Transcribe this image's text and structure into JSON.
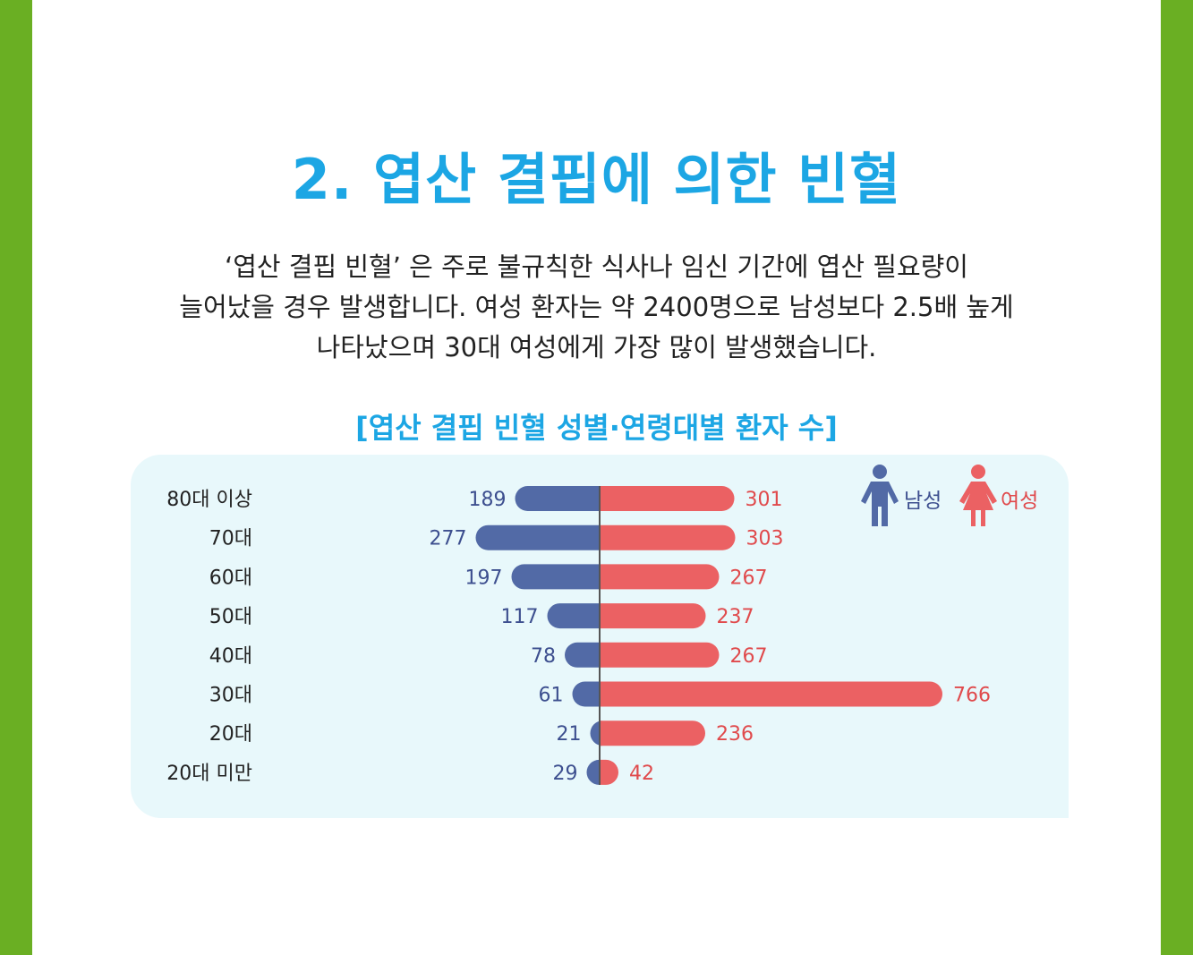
{
  "page": {
    "title": "2. 엽산 결핍에 의한 빈혈",
    "paragraph": [
      "‘엽산 결핍 빈혈’ 은 주로 불규칙한 식사나 임신 기간에 엽산 필요량이",
      "늘어났을 경우 발생합니다. 여성 환자는 약 2400명으로 남성보다 2.5배 높게",
      "나타났으며 30대 여성에게 가장 많이 발생했습니다."
    ]
  },
  "colors": {
    "accent": "#1ca6e4",
    "side_bar": "#6aaf23",
    "male": "#526aa6",
    "female": "#eb6163",
    "male_text": "#3d4f8f",
    "female_text": "#e04a4c",
    "panel": "#e8f8fb"
  },
  "legend": {
    "male_label": "남성",
    "female_label": "여성",
    "male_icon": "man-icon",
    "female_icon": "woman-icon"
  },
  "chart_data": {
    "type": "bar",
    "orientation": "horizontal-diverging",
    "title": "[엽산 결핍 빈혈 성별·연령대별 환자 수]",
    "categories": [
      "80대 이상",
      "70대",
      "60대",
      "50대",
      "40대",
      "30대",
      "20대",
      "20대 미만"
    ],
    "series": [
      {
        "name": "남성",
        "values": [
          189,
          277,
          197,
          117,
          78,
          61,
          21,
          29
        ]
      },
      {
        "name": "여성",
        "values": [
          301,
          303,
          267,
          237,
          267,
          766,
          236,
          42
        ]
      }
    ],
    "legend_position": "top-right",
    "grid": false
  }
}
